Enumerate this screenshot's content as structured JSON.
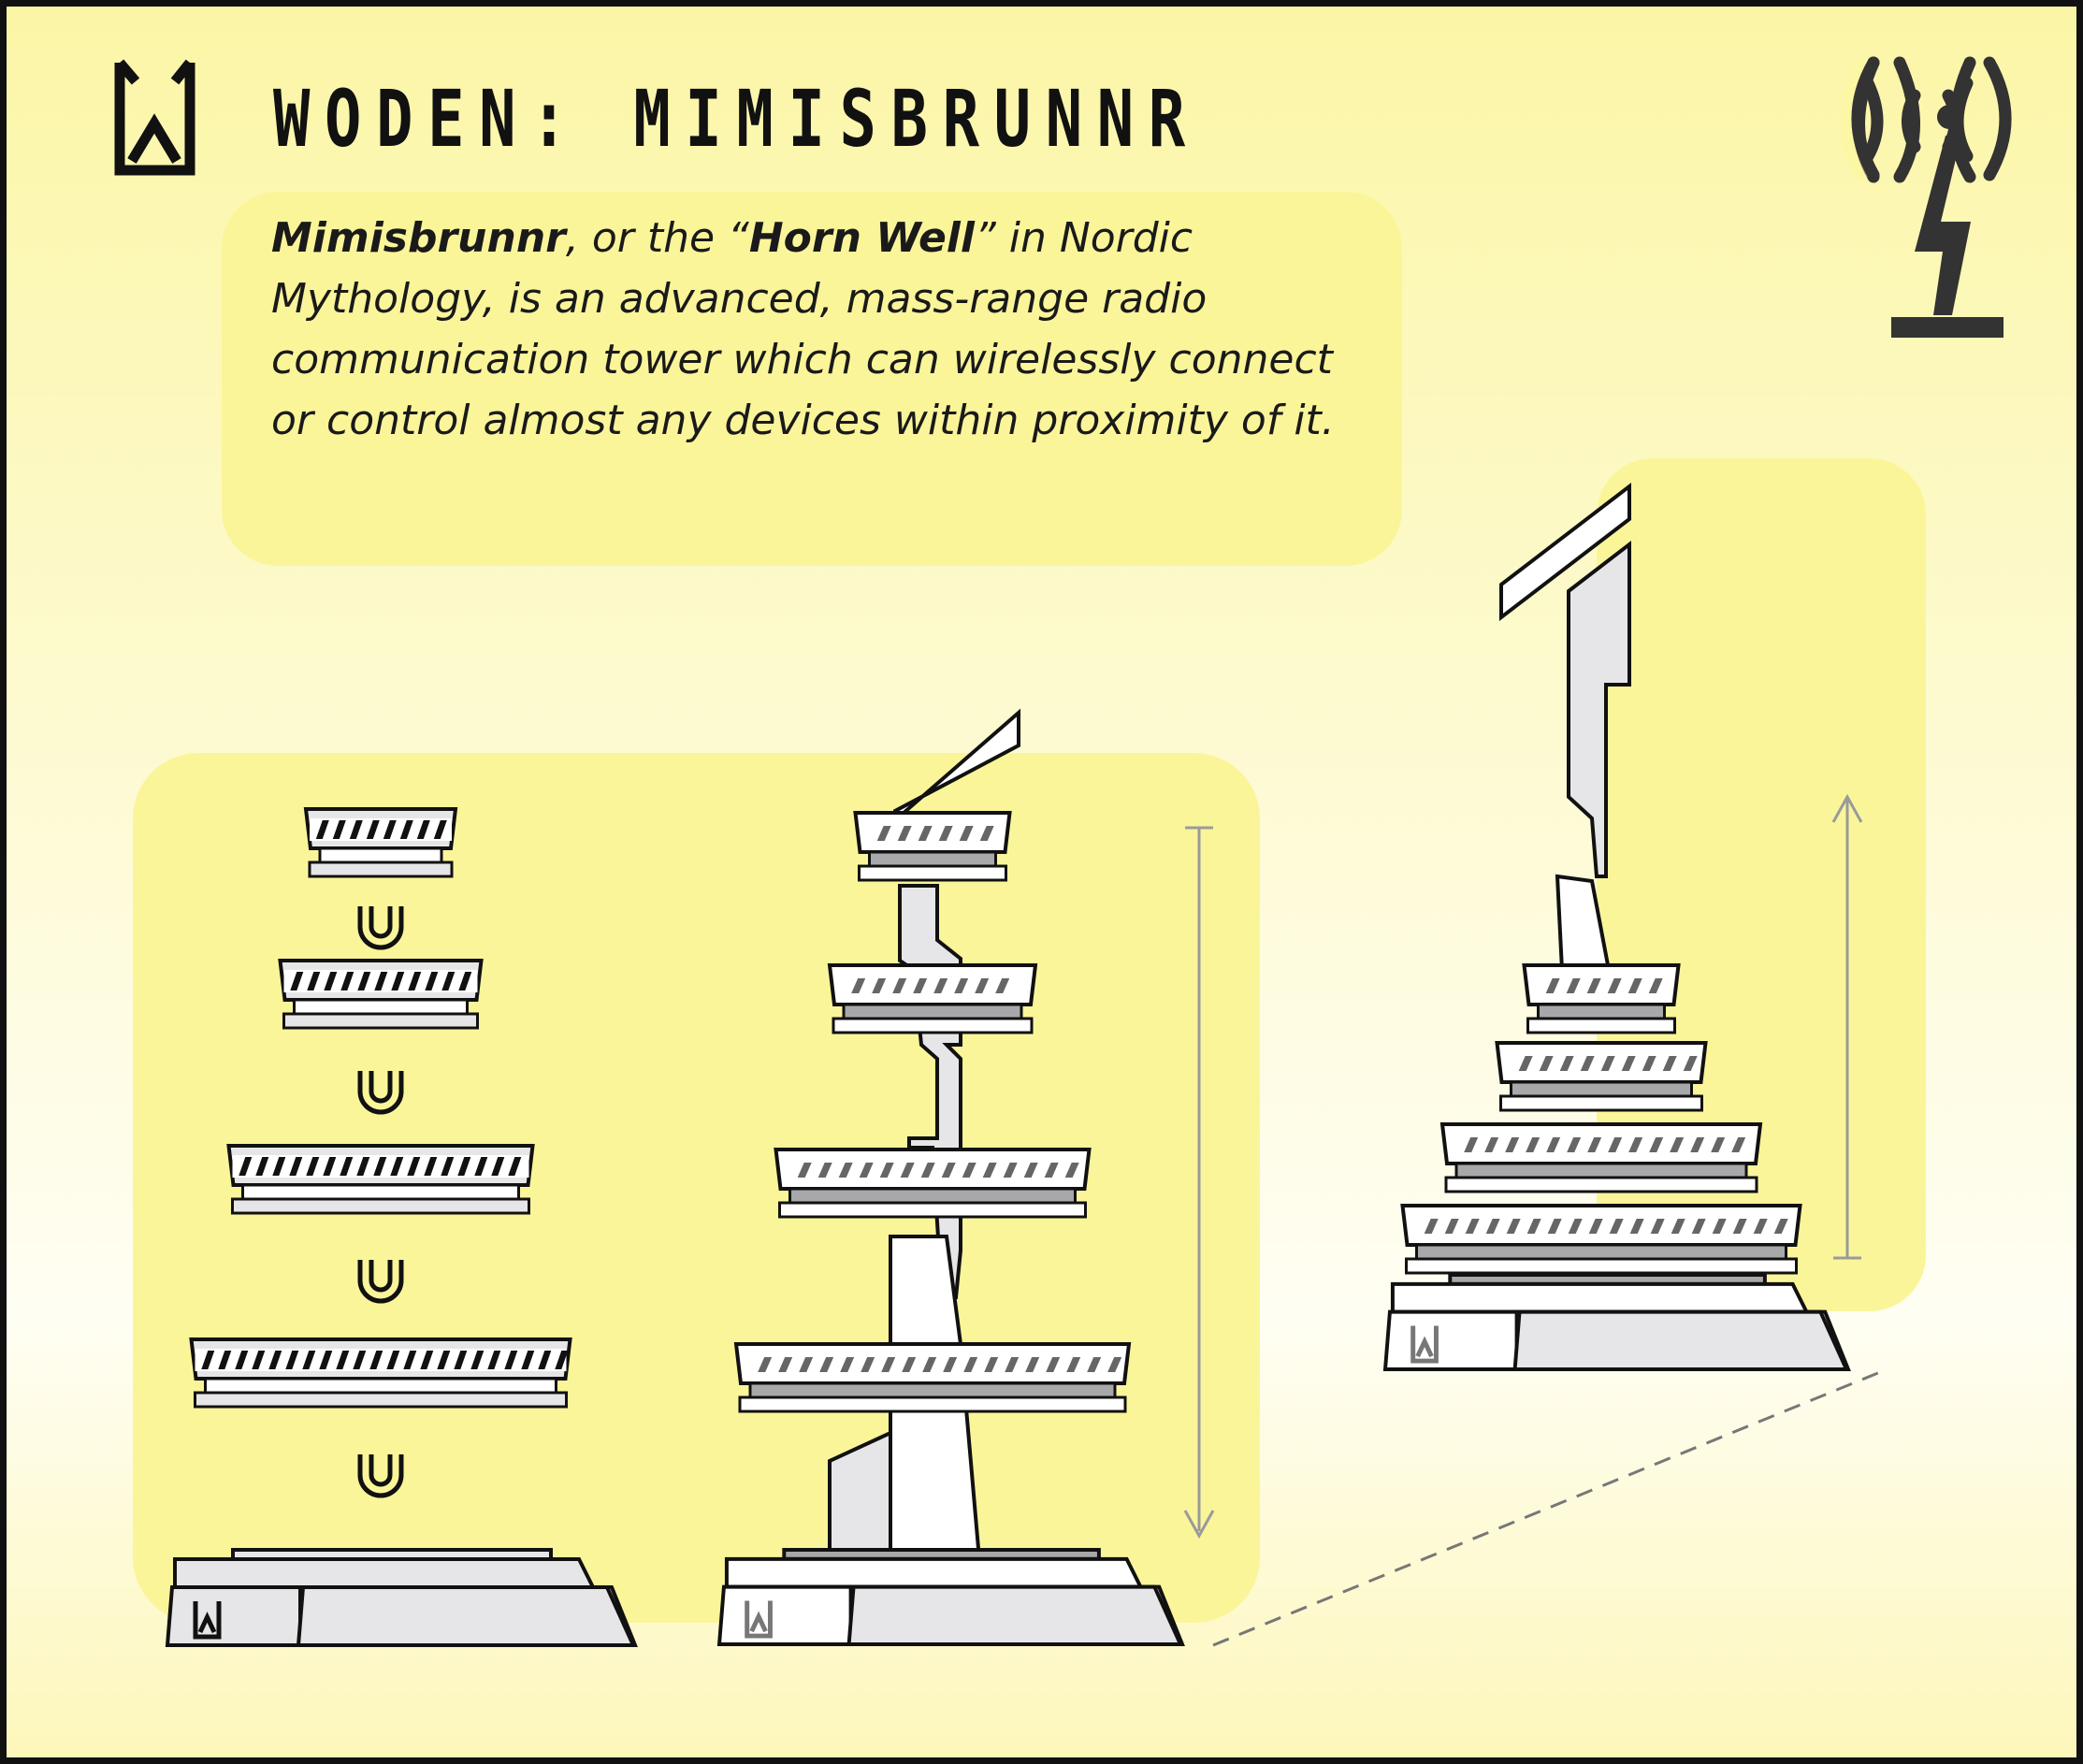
{
  "header": {
    "title": "WODEN: MIMISBRUNNR"
  },
  "description": {
    "term": "Mimisbrunnr",
    "part1": ", or the “",
    "term2": "Horn Well",
    "part2": "” in Nordic Mythology, is an advanced, mass-range radio communication tower which can wirelessly connect or control almost any devices within proximity of it."
  },
  "icons": {
    "logo": "woden-w-logo-icon",
    "broadcast": "radio-tower-signal-icon"
  },
  "colors": {
    "background": "#fdfad0",
    "panel": "#fbf59a",
    "outline": "#111111",
    "part_fill": "#e6e6e8",
    "dark_fill": "#a8a8aa",
    "arrow": "#a0a0a0"
  }
}
